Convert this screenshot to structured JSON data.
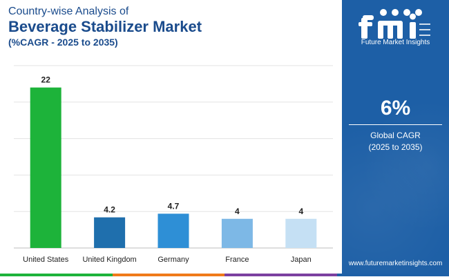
{
  "header": {
    "line1": "Country-wise Analysis of",
    "line2": "Beverage Stabilizer Market",
    "line3": "(%CAGR - 2025 to 2035)"
  },
  "chart_data": {
    "type": "bar",
    "title": "Beverage Stabilizer Market",
    "subtitle": "(%CAGR - 2025 to 2035)",
    "xlabel": "",
    "ylabel": "",
    "categories": [
      "United States",
      "United Kingdom",
      "Germany",
      "France",
      "Japan"
    ],
    "values": [
      22,
      4.2,
      4.7,
      4,
      4
    ],
    "data_labels": [
      "22",
      "4.2",
      "4.7",
      "4",
      "4"
    ],
    "colors": [
      "#1db33a",
      "#1f6fad",
      "#2e8fd6",
      "#7db8e6",
      "#c5e0f4"
    ],
    "ylim": [
      0,
      25
    ],
    "grid": true
  },
  "sidebar": {
    "logo_text": "Future Market Insights",
    "stat_value": "6%",
    "stat_label_1": "Global CAGR",
    "stat_label_2": "(2025 to 2035)",
    "website": "www.futuremarketinsights.com"
  },
  "footer_colors": [
    "#1db33a",
    "#f07a1a",
    "#7b3fa0",
    "#1d5fa6"
  ]
}
